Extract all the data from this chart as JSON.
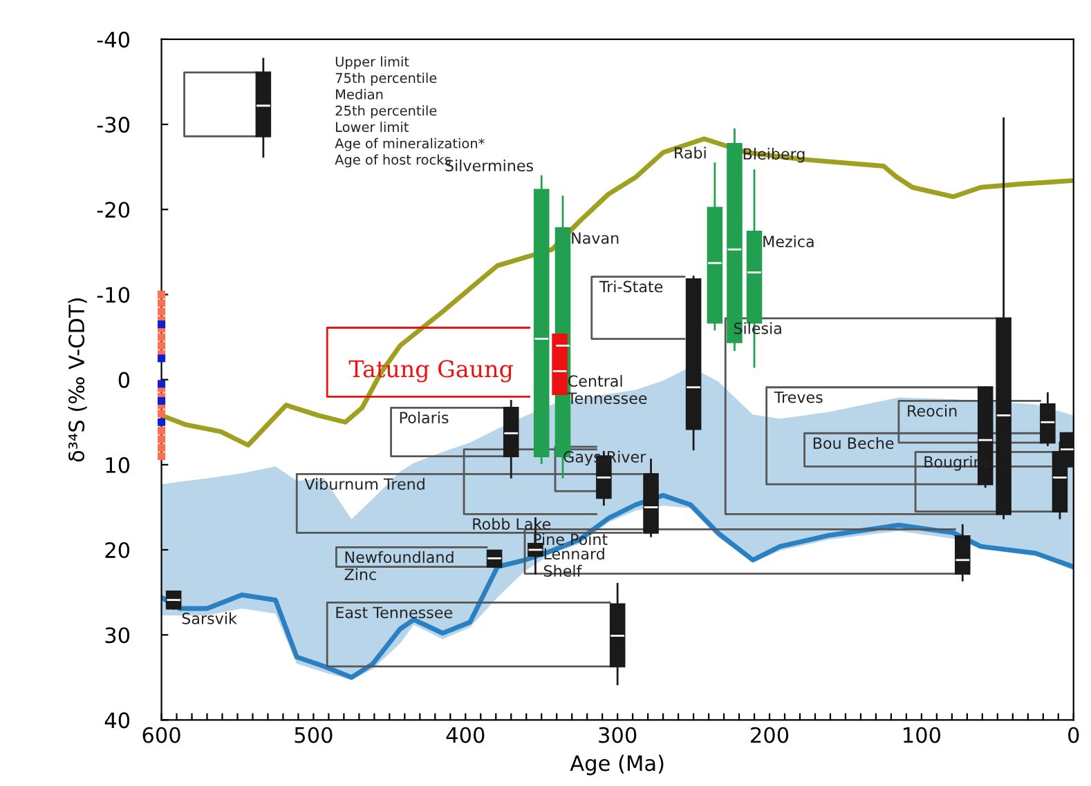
{
  "chart_data": {
    "type": "box",
    "xlabel": "Age (Ma)",
    "ylabel": "δ³⁴S (‰ V-CDT)",
    "xlim": [
      600,
      0
    ],
    "ylim": [
      40,
      -40
    ],
    "xticks": [
      0,
      100,
      200,
      300,
      400,
      500,
      600,
      {
        "value": 10,
        "label": null
      },
      {
        "value": 20,
        "label": null
      },
      {
        "value": 30,
        "label": null
      },
      {
        "value": 40,
        "label": null
      },
      {
        "value": 50,
        "label": null
      },
      {
        "value": 60,
        "label": null
      },
      {
        "value": 70,
        "label": null
      },
      {
        "value": 80,
        "label": null
      },
      {
        "value": 90,
        "label": null
      },
      {
        "value": 110,
        "label": null
      },
      {
        "value": 120,
        "label": null
      },
      {
        "value": 130,
        "label": null
      },
      {
        "value": 140,
        "label": null
      },
      {
        "value": 150,
        "label": null
      },
      {
        "value": 160,
        "label": null
      },
      {
        "value": 170,
        "label": null
      },
      {
        "value": 180,
        "label": null
      },
      {
        "value": 190,
        "label": null
      },
      {
        "value": 210,
        "label": null
      },
      {
        "value": 220,
        "label": null
      },
      {
        "value": 230,
        "label": null
      },
      {
        "value": 240,
        "label": null
      },
      {
        "value": 250,
        "label": null
      },
      {
        "value": 260,
        "label": null
      },
      {
        "value": 270,
        "label": null
      },
      {
        "value": 280,
        "label": null
      },
      {
        "value": 290,
        "label": null
      },
      {
        "value": 310,
        "label": null
      },
      {
        "value": 320,
        "label": null
      },
      {
        "value": 330,
        "label": null
      },
      {
        "value": 340,
        "label": null
      },
      {
        "value": 350,
        "label": null
      },
      {
        "value": 360,
        "label": null
      },
      {
        "value": 370,
        "label": null
      },
      {
        "value": 380,
        "label": null
      },
      {
        "value": 390,
        "label": null
      },
      {
        "value": 410,
        "label": null
      },
      {
        "value": 420,
        "label": null
      },
      {
        "value": 430,
        "label": null
      },
      {
        "value": 440,
        "label": null
      },
      {
        "value": 450,
        "label": null
      },
      {
        "value": 460,
        "label": null
      },
      {
        "value": 470,
        "label": null
      },
      {
        "value": 480,
        "label": null
      },
      {
        "value": 490,
        "label": null
      },
      {
        "value": 510,
        "label": null
      },
      {
        "value": 520,
        "label": null
      },
      {
        "value": 530,
        "label": null
      },
      {
        "value": 540,
        "label": null
      },
      {
        "value": 550,
        "label": null
      },
      {
        "value": 560,
        "label": null
      },
      {
        "value": 570,
        "label": null
      },
      {
        "value": 580,
        "label": null
      },
      {
        "value": 590,
        "label": null
      }
    ],
    "yticks": [
      -40,
      -30,
      -20,
      -10,
      0,
      10,
      20,
      30,
      40
    ],
    "series": [
      {
        "type": "line",
        "color": "#2a80c0",
        "x": [
          600,
          588,
          570,
          547,
          525,
          511,
          493,
          475,
          461,
          443,
          434,
          415,
          397,
          379,
          361,
          343,
          325,
          306,
          288,
          270,
          252,
          234,
          211,
          193,
          161,
          115,
          79,
          61,
          25,
          0
        ],
        "values": [
          25.6,
          26.9,
          26.9,
          25.3,
          25.9,
          32.6,
          33.7,
          35.0,
          33.4,
          29.3,
          28.2,
          29.8,
          28.5,
          22.0,
          21.2,
          20.1,
          18.8,
          16.3,
          14.7,
          13.6,
          14.7,
          18.0,
          21.2,
          19.6,
          18.3,
          17.1,
          18.0,
          19.6,
          20.4,
          22.0
        ],
        "lower": [
          12.3,
          12.0,
          11.6,
          11.0,
          10.2,
          11.9,
          11.6,
          16.4,
          14.0,
          10.8,
          9.8,
          8.5,
          7.4,
          5.8,
          4.3,
          2.9,
          2.3,
          1.7,
          1.2,
          0.1,
          -1.5,
          0.2,
          4.1,
          4.6,
          3.8,
          2.1,
          2.3,
          2.5,
          2.9,
          4.2
        ],
        "upper": [
          27.7,
          27.7,
          27.7,
          26.9,
          27.5,
          33.4,
          34.4,
          35.3,
          34.0,
          31.0,
          28.8,
          30.5,
          29.1,
          25.6,
          22.5,
          20.4,
          19.3,
          16.8,
          15.4,
          14.8,
          15.1,
          18.5,
          21.5,
          20.1,
          18.8,
          17.8,
          18.7,
          19.9,
          20.6,
          22.4
        ]
      },
      {
        "type": "line",
        "color": "#a0a020",
        "x": [
          600,
          584,
          561,
          543,
          518,
          497,
          479,
          468,
          456,
          443,
          415,
          393,
          379,
          343,
          325,
          306,
          288,
          270,
          243,
          215,
          179,
          125,
          117,
          106,
          79,
          61,
          34,
          0
        ],
        "values": [
          4.2,
          5.3,
          6.1,
          7.7,
          3.0,
          4.2,
          5.0,
          3.3,
          -0.7,
          -4.0,
          -8.0,
          -11.3,
          -13.4,
          -15.3,
          -18.6,
          -21.8,
          -23.8,
          -26.7,
          -28.3,
          -26.7,
          -25.9,
          -25.1,
          -23.9,
          -22.6,
          -21.5,
          -22.6,
          -23.0,
          -23.4
        ]
      },
      {
        "type": "scatter",
        "marker": "square",
        "color": "#ff7050",
        "x": [
          600,
          600,
          600,
          600,
          600,
          600,
          600,
          600,
          600,
          600,
          600,
          600,
          600,
          600,
          600,
          600
        ],
        "values": [
          -10,
          -9,
          -8,
          -7,
          -6,
          -5,
          -4,
          -3,
          1,
          2,
          3,
          4,
          6,
          7,
          8,
          9
        ]
      },
      {
        "type": "scatter",
        "marker": "square",
        "color": "#1020d0",
        "x": [
          600,
          600,
          600,
          600,
          600
        ],
        "values": [
          -6.5,
          -2.5,
          0.5,
          2.5,
          5
        ]
      },
      {
        "type": "line",
        "color": "#555555",
        "x": [
          538,
          585,
          585,
          538
        ],
        "values": [
          -36.1,
          -36.1,
          -28.6,
          -28.6
        ]
      },
      {
        "type": "line",
        "color": "#ee1111",
        "x": [
          358,
          491,
          491,
          358
        ],
        "values": [
          -6.1,
          -6.1,
          2.0,
          2.0
        ]
      },
      {
        "type": "line",
        "color": "#555555",
        "x": [
          256,
          317,
          317,
          256
        ],
        "values": [
          -12.1,
          -12.1,
          -4.8,
          -4.8
        ]
      },
      {
        "type": "line",
        "color": "#555555",
        "x": [
          375,
          449,
          449,
          375
        ],
        "values": [
          3.3,
          3.3,
          9.0,
          9.0
        ]
      },
      {
        "type": "line",
        "color": "#555555",
        "x": [
          314,
          341,
          341,
          314
        ],
        "values": [
          7.9,
          7.9,
          13.1,
          13.1
        ]
      },
      {
        "type": "line",
        "color": "#555555",
        "x": [
          284,
          511,
          511,
          284
        ],
        "values": [
          11.1,
          11.1,
          18.0,
          18.0
        ]
      },
      {
        "type": "line",
        "color": "#555555",
        "x": [
          314,
          401,
          401,
          314
        ],
        "values": [
          8.2,
          8.2,
          15.8,
          15.8
        ]
      },
      {
        "type": "line",
        "color": "#555555",
        "x": [
          386,
          485,
          485,
          386
        ],
        "values": [
          19.7,
          19.7,
          22.0,
          22.0
        ]
      },
      {
        "type": "line",
        "color": "#555555",
        "x": [
          78,
          361,
          361,
          78
        ],
        "values": [
          17.6,
          17.6,
          22.8,
          22.8
        ]
      },
      {
        "type": "line",
        "color": "#555555",
        "x": [
          305,
          491,
          491,
          305
        ],
        "values": [
          26.2,
          26.2,
          33.7,
          33.7
        ]
      },
      {
        "type": "line",
        "color": "#555555",
        "x": [
          63,
          202,
          202,
          63
        ],
        "values": [
          0.9,
          0.9,
          12.3,
          12.3
        ]
      },
      {
        "type": "line",
        "color": "#555555",
        "x": [
          51,
          229,
          229,
          51
        ],
        "values": [
          -7.2,
          -7.2,
          15.8,
          15.8
        ]
      },
      {
        "type": "line",
        "color": "#555555",
        "x": [
          22,
          115,
          115,
          22
        ],
        "values": [
          2.5,
          2.5,
          7.4,
          7.4
        ]
      },
      {
        "type": "line",
        "color": "#555555",
        "x": [
          15,
          177,
          177,
          15
        ],
        "values": [
          6.3,
          6.3,
          10.2,
          10.2
        ]
      },
      {
        "type": "line",
        "color": "#555555",
        "x": [
          14,
          104,
          104,
          14
        ],
        "values": [
          8.5,
          8.5,
          15.5,
          15.5
        ]
      },
      {
        "color": "#1a1a1a",
        "x": [
          533
        ],
        "boxes": [
          {
            "low": -37.7,
            "q1": -36.1,
            "median": -32.2,
            "q3": -28.6,
            "high": -26.2
          }
        ]
      },
      {
        "color": "#22a050",
        "x": [
          350
        ],
        "boxes": [
          {
            "low": -23.9,
            "q1": -22.3,
            "median": -4.8,
            "q3": 9.0,
            "high": 9.8
          }
        ]
      },
      {
        "color": "#22a050",
        "x": [
          336
        ],
        "boxes": [
          {
            "low": -21.5,
            "q1": -17.8,
            "median": -4.0,
            "q3": 9.0,
            "high": 11.5
          }
        ]
      },
      {
        "color": "#22a050",
        "x": [
          236
        ],
        "boxes": [
          {
            "low": -25.4,
            "q1": -20.2,
            "median": -13.7,
            "q3": -6.7,
            "high": -5.9
          }
        ]
      },
      {
        "color": "#22a050",
        "x": [
          223
        ],
        "boxes": [
          {
            "low": -29.4,
            "q1": -27.7,
            "median": -15.3,
            "q3": -4.4,
            "high": -3.5
          }
        ]
      },
      {
        "color": "#22a050",
        "x": [
          210
        ],
        "boxes": [
          {
            "low": -24.6,
            "q1": -17.4,
            "median": -12.6,
            "q3": -6.7,
            "high": -1.5
          }
        ]
      },
      {
        "name": "Tatung Gaung",
        "color": "#ee1111",
        "x": [
          338
        ],
        "boxes": [
          {
            "low": -5.3,
            "q1": -5.3,
            "median": -1.0,
            "q3": 1.7,
            "high": 1.7
          }
        ]
      },
      {
        "color": "#1a1a1a",
        "x": [
          250
        ],
        "boxes": [
          {
            "low": -12.1,
            "q1": -11.8,
            "median": 0.9,
            "q3": 5.8,
            "high": 8.2
          }
        ]
      },
      {
        "color": "#1a1a1a",
        "x": [
          370
        ],
        "boxes": [
          {
            "low": 2.5,
            "q1": 3.3,
            "median": 6.3,
            "q3": 9.0,
            "high": 11.5
          }
        ]
      },
      {
        "color": "#1a1a1a",
        "x": [
          309
        ],
        "boxes": [
          {
            "low": 8.5,
            "q1": 9.0,
            "median": 11.5,
            "q3": 13.9,
            "high": 14.7
          }
        ]
      },
      {
        "color": "#1a1a1a",
        "x": [
          278
        ],
        "boxes": [
          {
            "low": 9.4,
            "q1": 11.1,
            "median": 15.0,
            "q3": 18.0,
            "high": 18.4
          }
        ]
      },
      {
        "color": "#1a1a1a",
        "x": [
          381
        ],
        "boxes": [
          {
            "low": 20.1,
            "q1": 20.1,
            "median": 21.0,
            "q3": 22.0,
            "high": 22.0
          }
        ]
      },
      {
        "color": "#1a1a1a",
        "x": [
          354
        ],
        "boxes": [
          {
            "low": 16.3,
            "q1": 19.3,
            "median": 20.0,
            "q3": 20.7,
            "high": 22.8
          }
        ]
      },
      {
        "color": "#1a1a1a",
        "x": [
          300
        ],
        "boxes": [
          {
            "low": 24.0,
            "q1": 26.4,
            "median": 30.1,
            "q3": 33.7,
            "high": 35.8
          }
        ]
      },
      {
        "color": "#1a1a1a",
        "x": [
          592
        ],
        "boxes": [
          {
            "low": 24.9,
            "q1": 24.9,
            "median": 25.9,
            "q3": 26.9,
            "high": 26.9
          }
        ]
      },
      {
        "color": "#1a1a1a",
        "x": [
          73
        ],
        "boxes": [
          {
            "low": 17.1,
            "q1": 18.4,
            "median": 21.2,
            "q3": 22.8,
            "high": 23.6
          }
        ]
      },
      {
        "color": "#1a1a1a",
        "x": [
          58
        ],
        "boxes": [
          {
            "low": 0.9,
            "q1": 0.9,
            "median": 7.1,
            "q3": 12.3,
            "high": 12.6
          }
        ]
      },
      {
        "color": "#1a1a1a",
        "x": [
          46
        ],
        "boxes": [
          {
            "low": -30.7,
            "q1": -7.2,
            "median": 4.2,
            "q3": 15.8,
            "high": 16.3
          }
        ]
      },
      {
        "color": "#1a1a1a",
        "x": [
          17
        ],
        "boxes": [
          {
            "low": 1.6,
            "q1": 2.9,
            "median": 5.0,
            "q3": 7.4,
            "high": 7.7
          }
        ]
      },
      {
        "color": "#1a1a1a",
        "x": [
          9
        ],
        "boxes": [
          {
            "low": 7.4,
            "q1": 8.5,
            "median": 11.5,
            "q3": 15.5,
            "high": 16.3
          }
        ]
      },
      {
        "color": "#1a1a1a",
        "x": [
          4
        ],
        "boxes": [
          {
            "low": 6.3,
            "q1": 6.3,
            "median": 8.2,
            "q3": 10.2,
            "high": 10.2
          }
        ]
      }
    ],
    "annotations": [
      "Upper limit",
      "75th percentile",
      "Median",
      "25th percentile",
      "Lower limit",
      "Age of mineralization*",
      "Age of host rocks",
      {
        "text": "Silvermines",
        "x": 350,
        "y": -23.9
      },
      {
        "text": "Navan",
        "x": 336,
        "y": -17.8
      },
      {
        "text": "Rabi",
        "x": 236,
        "y": -25.4
      },
      {
        "text": "Bleiberg",
        "x": 223,
        "y": -27.7
      },
      {
        "text": "Mezica",
        "x": 210,
        "y": -17.4
      },
      {
        "text": "Tri-State",
        "x": 317,
        "y": -12.1
      },
      {
        "text": "Central\nTennessee",
        "x": 338,
        "y": -1.0
      },
      {
        "text": "Silesia",
        "x": 229,
        "y": -7.2
      },
      {
        "text": "Polaris",
        "x": 449,
        "y": 3.3
      },
      {
        "text": "Gays River",
        "x": 341,
        "y": 7.9
      },
      {
        "text": "Viburnum Trend",
        "x": 511,
        "y": 11.1
      },
      {
        "text": "Robb Lake",
        "x": 401,
        "y": 15.8
      },
      {
        "text": "Newfoundland\nZinc",
        "x": 485,
        "y": 19.7
      },
      {
        "text": "Lennard\nShelf",
        "x": 354,
        "y": 19.3
      },
      {
        "text": "East Tennessee",
        "x": 491,
        "y": 26.2
      },
      {
        "text": "Sarsvik",
        "x": 592,
        "y": 26.9
      },
      {
        "text": "Pine Point",
        "x": 361,
        "y": 17.6
      },
      {
        "text": "Treves",
        "x": 202,
        "y": 0.9
      },
      {
        "text": "Reocin",
        "x": 115,
        "y": 2.5
      },
      {
        "text": "Bou Beche",
        "x": 177,
        "y": 6.3
      },
      {
        "text": "Bougrine",
        "x": 104,
        "y": 8.5
      }
    ]
  }
}
